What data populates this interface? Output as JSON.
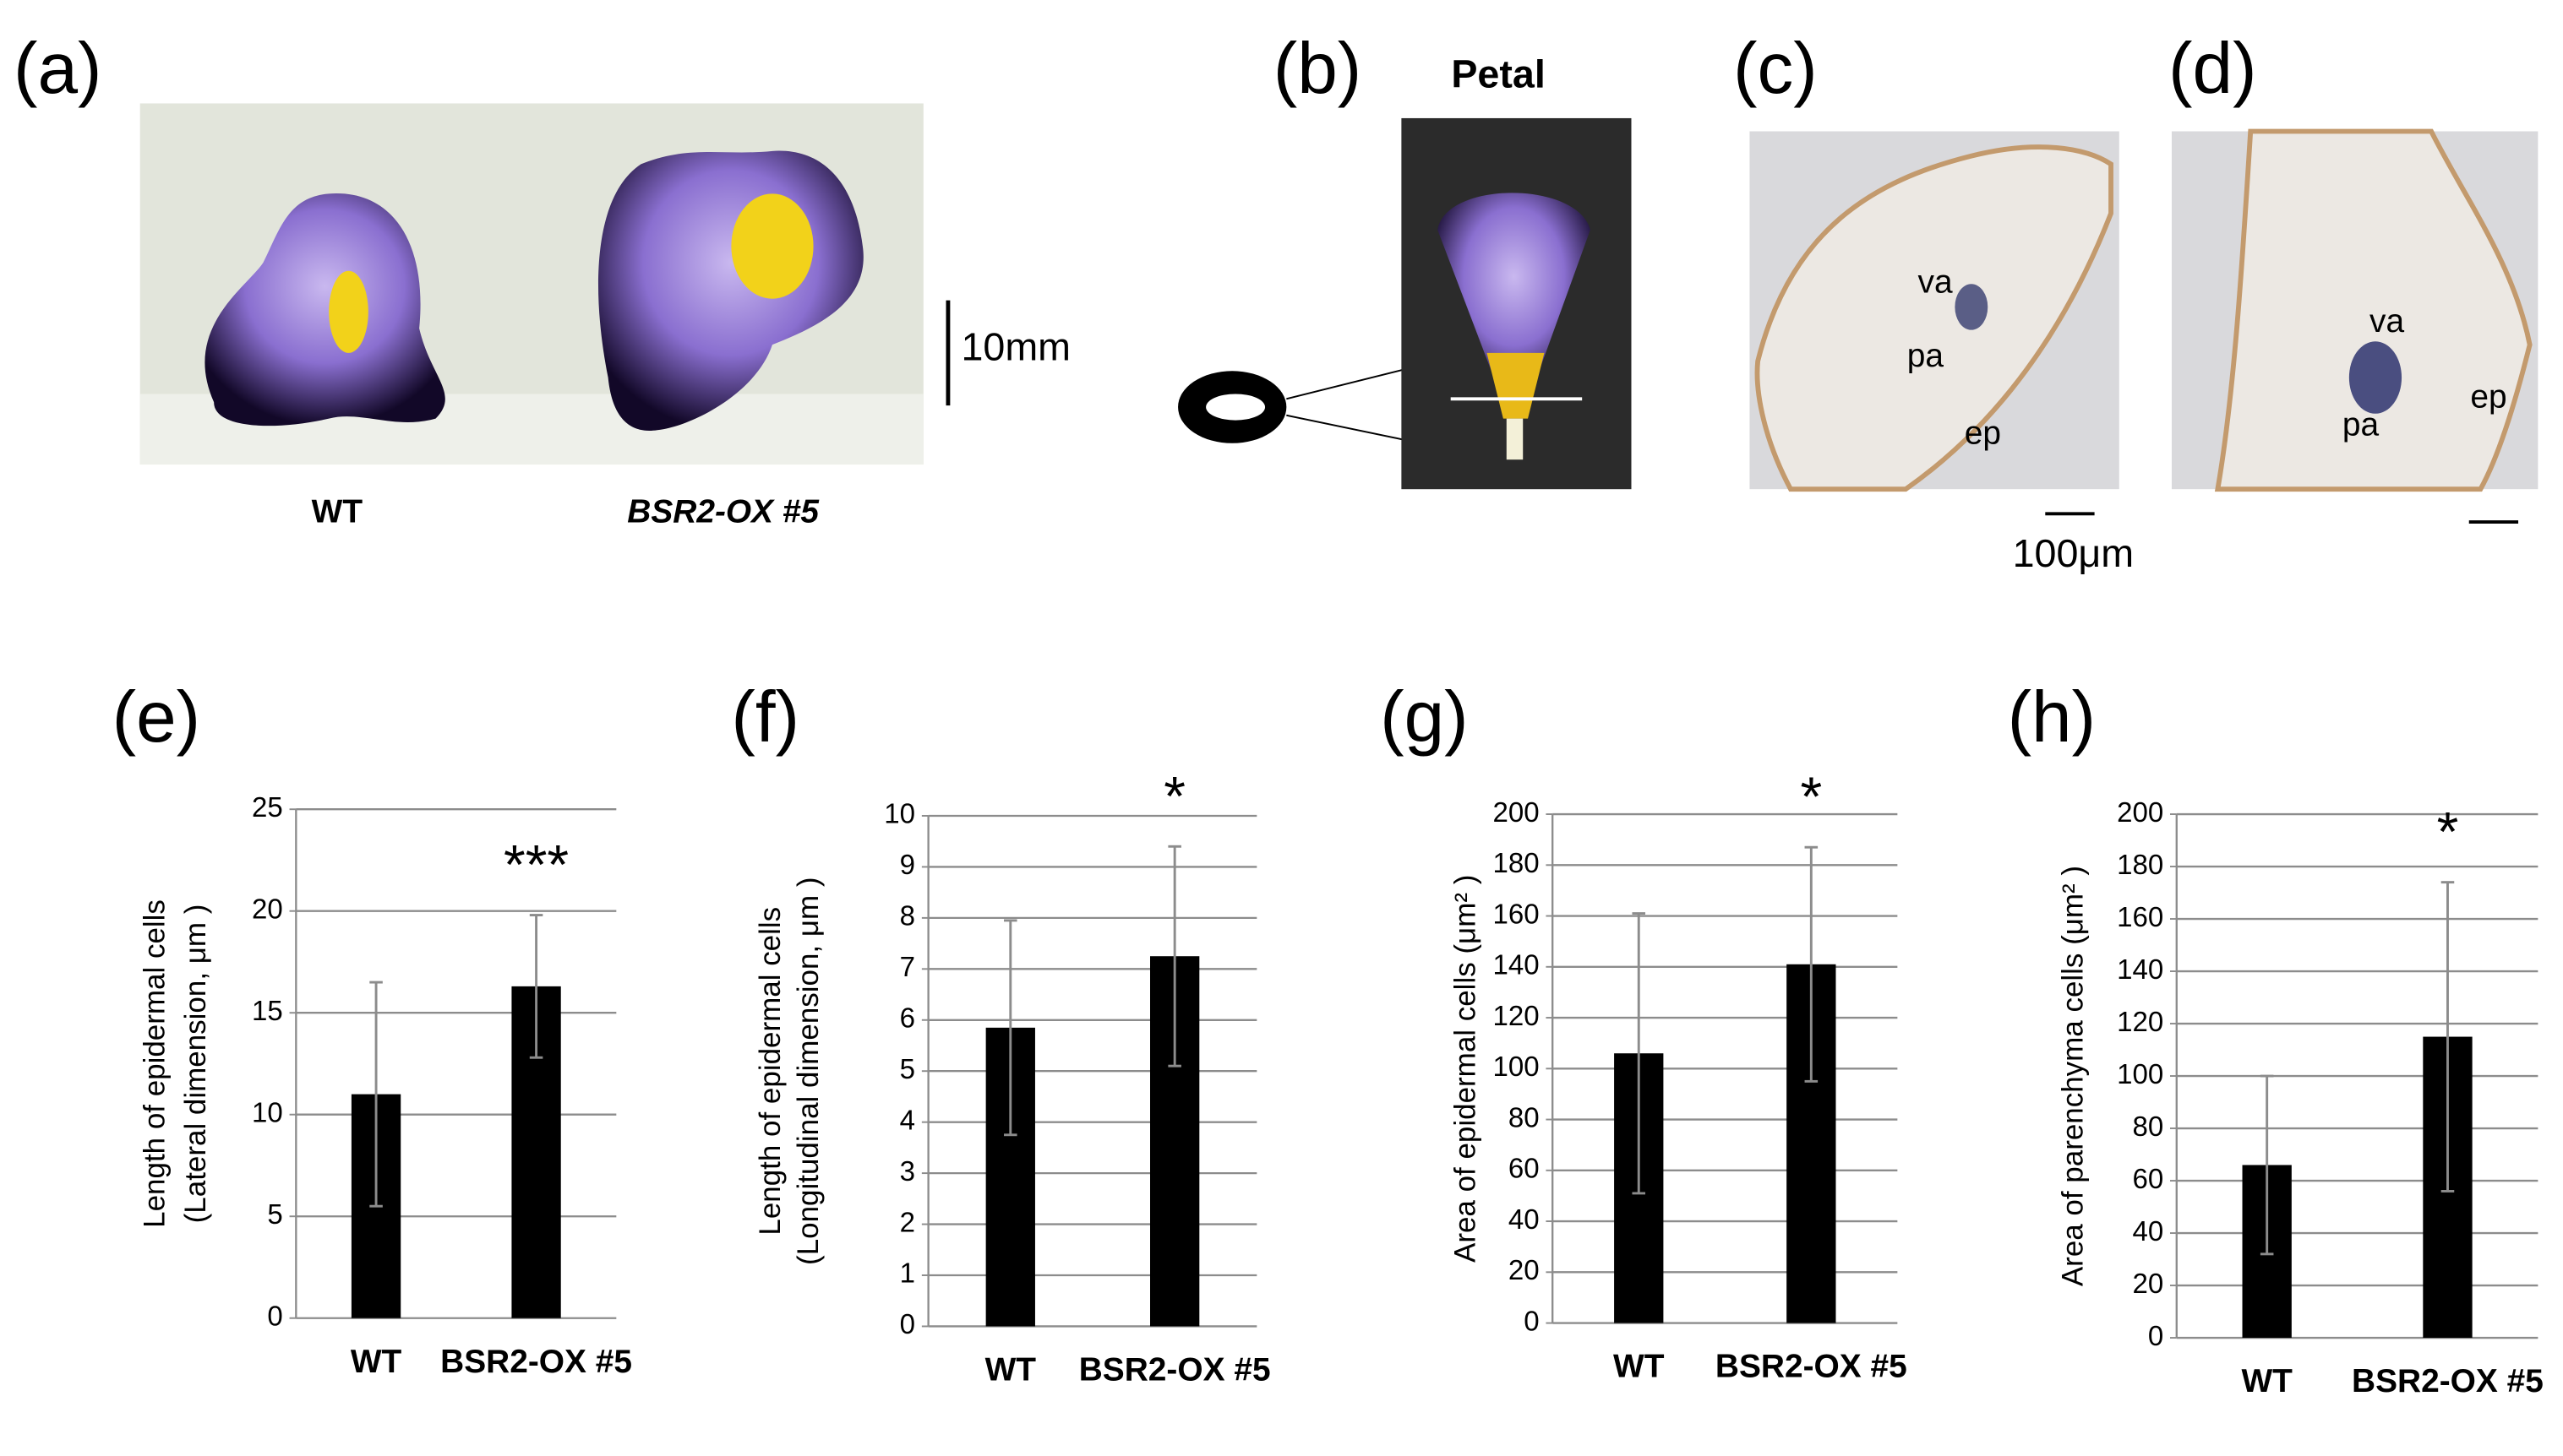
{
  "figure": {
    "panel_labels": [
      "(a)",
      "(b)",
      "(c)",
      "(d)",
      "(e)",
      "(f)",
      "(g)",
      "(h)"
    ],
    "a": {
      "labels": [
        "WT",
        "BSR2-OX #5"
      ],
      "scale": "10mm"
    },
    "b": {
      "title": "Petal"
    },
    "c": {
      "labels": [
        "va",
        "pa",
        "ep"
      ],
      "scale": "100μm"
    },
    "d": {
      "labels": [
        "va",
        "pa",
        "ep"
      ]
    }
  },
  "chart_data": [
    {
      "type": "bar",
      "categories": [
        "WT",
        "BSR2-OX #5"
      ],
      "values": [
        11,
        16.3
      ],
      "errors": [
        5.5,
        3.5
      ],
      "color": "#000000",
      "ylim": [
        0,
        25
      ],
      "yticks": [
        0,
        5,
        10,
        15,
        20,
        25
      ],
      "grid": true,
      "ylabel": [
        "Length of epidermal cells",
        "(Lateral dimension, μm )"
      ],
      "annotation": "***"
    },
    {
      "type": "bar",
      "categories": [
        "WT",
        "BSR2-OX #5"
      ],
      "values": [
        5.85,
        7.25
      ],
      "errors": [
        2.1,
        2.15
      ],
      "color": "#000000",
      "ylim": [
        0,
        10
      ],
      "yticks": [
        0,
        1,
        2,
        3,
        4,
        5,
        6,
        7,
        8,
        9,
        10
      ],
      "grid": true,
      "ylabel": [
        "Length of epidermal cells",
        "(Longitudinal dimension, μm )"
      ],
      "annotation": "*"
    },
    {
      "type": "bar",
      "categories": [
        "WT",
        "BSR2-OX #5"
      ],
      "values": [
        106,
        141
      ],
      "errors": [
        55,
        46
      ],
      "color": "#000000",
      "ylim": [
        0,
        200
      ],
      "yticks": [
        0,
        20,
        40,
        60,
        80,
        100,
        120,
        140,
        160,
        180,
        200
      ],
      "grid": true,
      "ylabel": [
        "Area of epidermal cells (μm² )"
      ],
      "annotation": "*"
    },
    {
      "type": "bar",
      "categories": [
        "WT",
        "BSR2-OX #5"
      ],
      "values": [
        66,
        115
      ],
      "errors": [
        34,
        59
      ],
      "color": "#000000",
      "ylim": [
        0,
        200
      ],
      "yticks": [
        0,
        20,
        40,
        60,
        80,
        100,
        120,
        140,
        160,
        180,
        200
      ],
      "grid": true,
      "ylabel": [
        "Area of parenchyma cells (μm² )"
      ],
      "annotation": "*"
    }
  ]
}
